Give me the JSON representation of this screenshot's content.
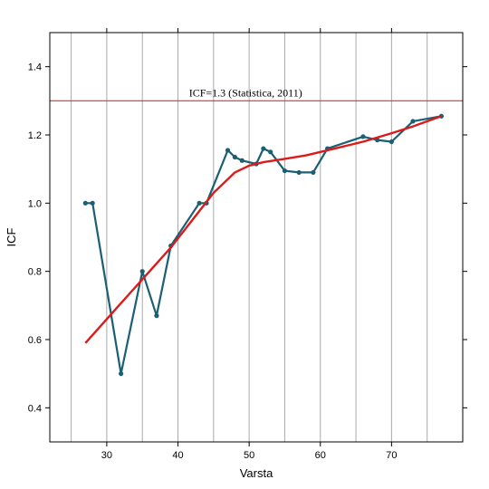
{
  "chart_data": {
    "type": "line",
    "title": "",
    "xlabel": "Varsta",
    "ylabel": "ICF",
    "xlim": [
      22,
      80
    ],
    "ylim": [
      0.3,
      1.5
    ],
    "grid": "vertical",
    "x_ticks": [
      30,
      40,
      50,
      60,
      70
    ],
    "y_ticks": [
      0.4,
      0.6,
      0.8,
      1.0,
      1.2,
      1.4
    ],
    "x_tick_labels": [
      "30",
      "40",
      "50",
      "60",
      "70"
    ],
    "y_tick_labels": [
      "0.4",
      "0.6",
      "0.8",
      "1.0",
      "1.2",
      "1.4"
    ],
    "vgrid_x": [
      25,
      30,
      35,
      40,
      45,
      50,
      55,
      60,
      65,
      70,
      75
    ],
    "reference_line": {
      "y": 1.3,
      "label": "ICF=1.3 (Statistica, 2011)",
      "color": "#e0302a"
    },
    "series": [
      {
        "color": "#1a5f73",
        "points": [
          [
            27,
            1.0
          ],
          [
            28,
            1.0
          ],
          [
            32,
            0.5
          ],
          [
            35,
            0.8
          ],
          [
            37,
            0.67
          ],
          [
            39,
            0.875
          ],
          [
            43,
            1.0
          ],
          [
            44,
            1.0
          ],
          [
            47,
            1.155
          ],
          [
            48,
            1.135
          ],
          [
            49,
            1.125
          ],
          [
            51,
            1.115
          ],
          [
            52,
            1.16
          ],
          [
            53,
            1.15
          ],
          [
            55,
            1.095
          ],
          [
            57,
            1.09
          ],
          [
            59,
            1.09
          ],
          [
            61,
            1.16
          ],
          [
            66,
            1.195
          ],
          [
            68,
            1.185
          ],
          [
            70,
            1.18
          ],
          [
            73,
            1.24
          ],
          [
            77,
            1.255
          ]
        ]
      },
      {
        "color": "#dd1a1a",
        "points": [
          [
            27,
            0.59
          ],
          [
            30,
            0.66
          ],
          [
            33,
            0.73
          ],
          [
            36,
            0.8
          ],
          [
            39,
            0.87
          ],
          [
            42,
            0.95
          ],
          [
            45,
            1.03
          ],
          [
            48,
            1.09
          ],
          [
            50,
            1.11
          ],
          [
            52,
            1.12
          ],
          [
            55,
            1.13
          ],
          [
            58,
            1.14
          ],
          [
            60,
            1.15
          ],
          [
            63,
            1.165
          ],
          [
            66,
            1.18
          ],
          [
            70,
            1.205
          ],
          [
            73,
            1.225
          ],
          [
            77,
            1.255
          ]
        ]
      }
    ]
  }
}
